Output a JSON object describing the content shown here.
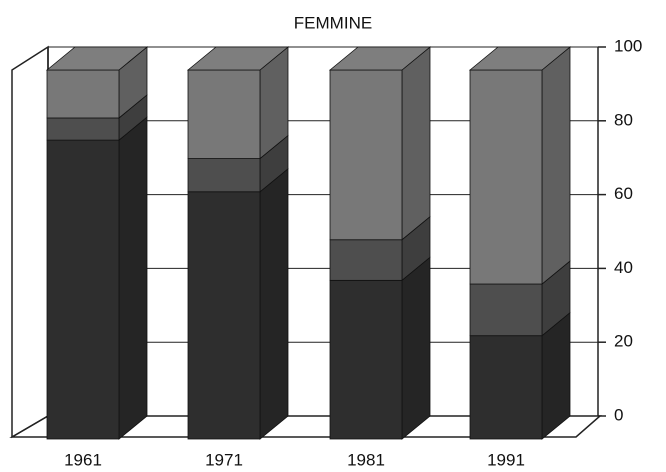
{
  "chart_data": {
    "type": "bar3d_stacked",
    "title": "FEMMINE",
    "categories": [
      "1961",
      "1971",
      "1981",
      "1991"
    ],
    "series": [
      {
        "color": "#2e2e2e",
        "values": [
          81,
          67,
          43,
          28
        ]
      },
      {
        "color": "#4e4e4e",
        "values": [
          6,
          9,
          11,
          14
        ]
      },
      {
        "color": "#787878",
        "values": [
          13,
          24,
          46,
          58
        ]
      }
    ],
    "ylim": [
      0,
      100
    ],
    "yticks": [
      0,
      20,
      40,
      60,
      80,
      100
    ],
    "grid": true
  }
}
